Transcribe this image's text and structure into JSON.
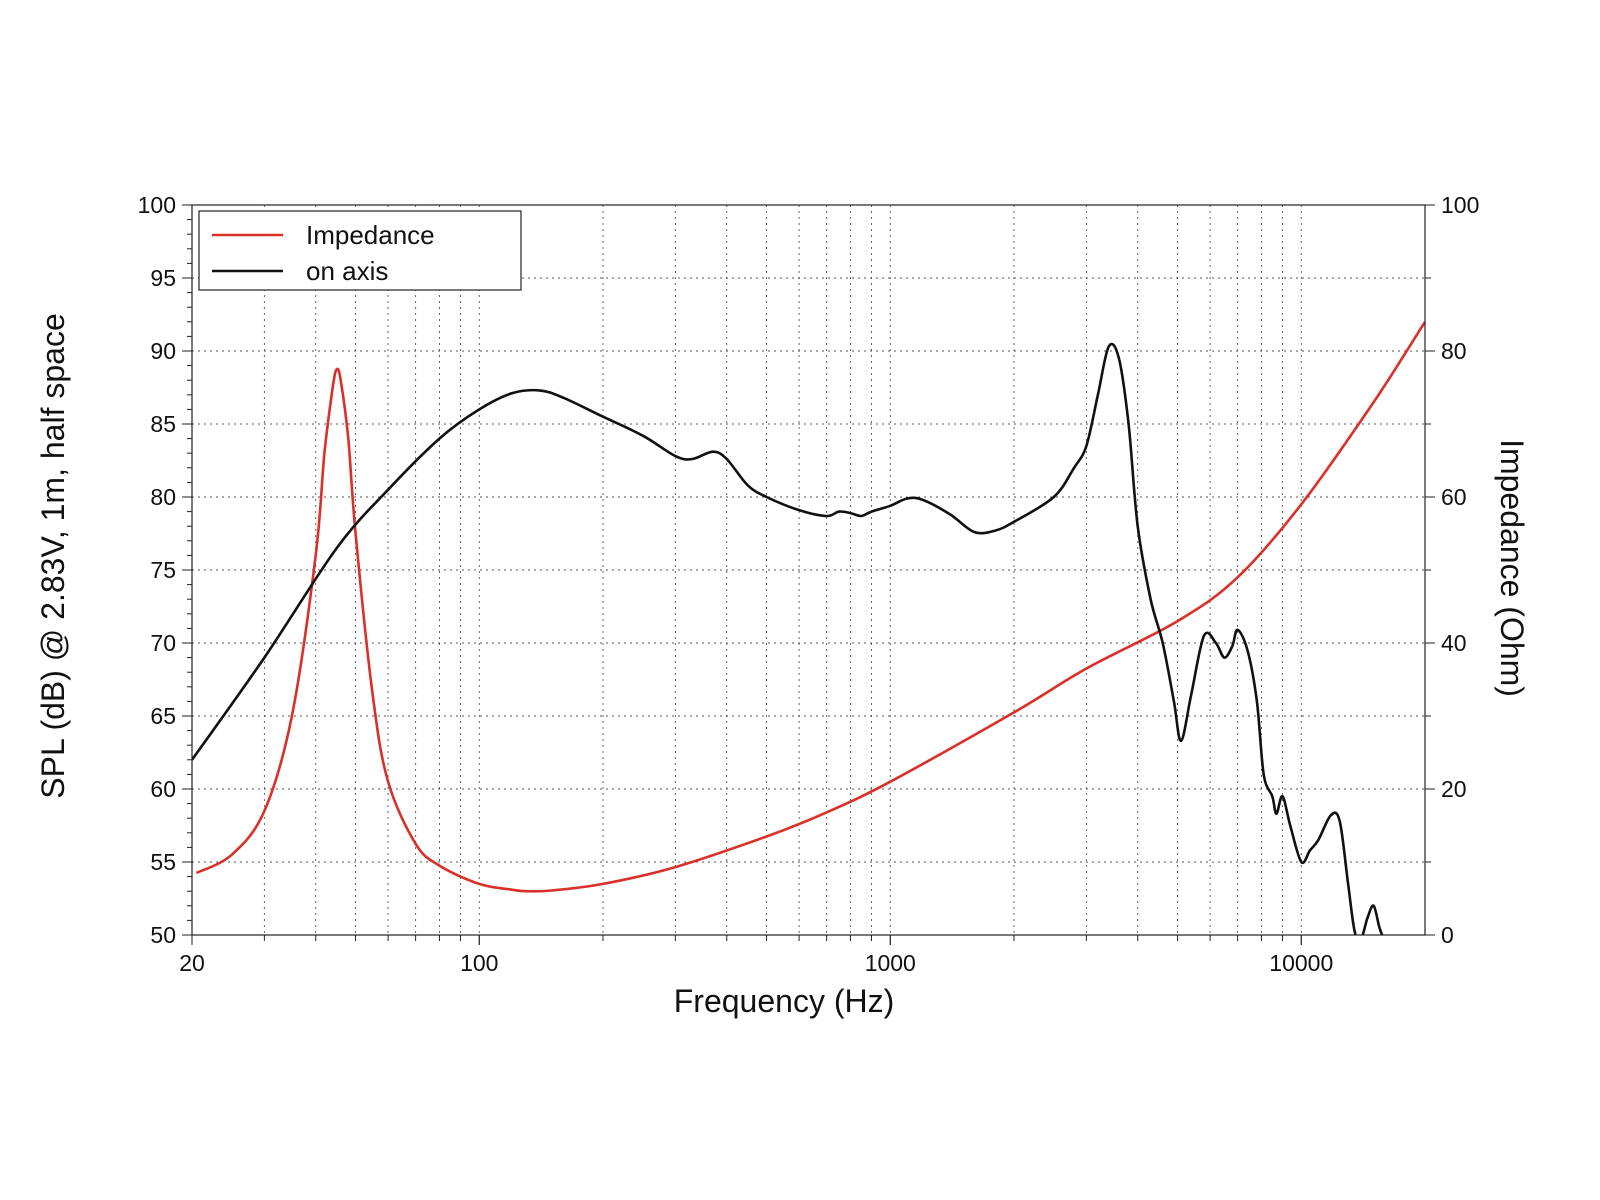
{
  "chart_data": {
    "type": "line",
    "title": "",
    "xlabel": "Frequency (Hz)",
    "ylabel": "SPL (dB) @ 2.83V, 1m, half space",
    "y2label": "Impedance (Ohm)",
    "x_scale": "log",
    "xlim": [
      20,
      20000
    ],
    "ylim": [
      50,
      100
    ],
    "y2lim": [
      0,
      100
    ],
    "grid": true,
    "legend_position": "top-left",
    "x_ticks": [
      20,
      100,
      1000,
      10000
    ],
    "x_tick_labels": [
      "20",
      "100",
      "1000",
      "10000"
    ],
    "y_ticks": [
      50,
      55,
      60,
      65,
      70,
      75,
      80,
      85,
      90,
      95,
      100
    ],
    "y_tick_labels": [
      "50",
      "55",
      "60",
      "65",
      "70",
      "75",
      "80",
      "85",
      "90",
      "95",
      "100"
    ],
    "y2_ticks": [
      0,
      20,
      40,
      60,
      80,
      100
    ],
    "y2_tick_labels": [
      "0",
      "20",
      "40",
      "60",
      "80",
      "100"
    ],
    "series": [
      {
        "name": "Impedance",
        "axis": "right",
        "color": "#d9302a",
        "points": [
          [
            20.5,
            8.5
          ],
          [
            25,
            11
          ],
          [
            30,
            17
          ],
          [
            35,
            30
          ],
          [
            40,
            52
          ],
          [
            42,
            66
          ],
          [
            44,
            75
          ],
          [
            45,
            77.5
          ],
          [
            46,
            76
          ],
          [
            48,
            68
          ],
          [
            50,
            55
          ],
          [
            55,
            33
          ],
          [
            60,
            21
          ],
          [
            70,
            12.5
          ],
          [
            80,
            9.5
          ],
          [
            100,
            7
          ],
          [
            120,
            6.2
          ],
          [
            130,
            6
          ],
          [
            150,
            6.1
          ],
          [
            200,
            7
          ],
          [
            300,
            9.3
          ],
          [
            500,
            13.5
          ],
          [
            700,
            16.8
          ],
          [
            1000,
            21
          ],
          [
            2000,
            30.5
          ],
          [
            3000,
            36.5
          ],
          [
            5000,
            43
          ],
          [
            7000,
            49
          ],
          [
            10000,
            59
          ],
          [
            15000,
            73
          ],
          [
            20000,
            84
          ]
        ]
      },
      {
        "name": "on axis",
        "axis": "left",
        "color": "#111111",
        "points": [
          [
            20,
            62
          ],
          [
            30,
            69
          ],
          [
            45,
            76.5
          ],
          [
            60,
            80.5
          ],
          [
            80,
            84
          ],
          [
            100,
            86
          ],
          [
            120,
            87.1
          ],
          [
            140,
            87.3
          ],
          [
            160,
            86.8
          ],
          [
            200,
            85.5
          ],
          [
            250,
            84.2
          ],
          [
            300,
            82.8
          ],
          [
            330,
            82.6
          ],
          [
            370,
            83.1
          ],
          [
            400,
            82.6
          ],
          [
            450,
            80.8
          ],
          [
            500,
            80
          ],
          [
            600,
            79.1
          ],
          [
            700,
            78.7
          ],
          [
            750,
            79
          ],
          [
            800,
            78.9
          ],
          [
            850,
            78.7
          ],
          [
            900,
            79
          ],
          [
            1000,
            79.4
          ],
          [
            1100,
            79.9
          ],
          [
            1200,
            79.8
          ],
          [
            1400,
            78.8
          ],
          [
            1600,
            77.6
          ],
          [
            1800,
            77.7
          ],
          [
            2000,
            78.3
          ],
          [
            2500,
            80
          ],
          [
            2800,
            82
          ],
          [
            3000,
            83.5
          ],
          [
            3200,
            87
          ],
          [
            3400,
            90.3
          ],
          [
            3600,
            89.5
          ],
          [
            3800,
            85
          ],
          [
            4000,
            78
          ],
          [
            4300,
            73
          ],
          [
            4600,
            70
          ],
          [
            4900,
            66
          ],
          [
            5100,
            63.3
          ],
          [
            5400,
            66.5
          ],
          [
            5800,
            70.5
          ],
          [
            6200,
            70
          ],
          [
            6500,
            69
          ],
          [
            6800,
            69.8
          ],
          [
            7000,
            70.9
          ],
          [
            7400,
            69.5
          ],
          [
            7800,
            66
          ],
          [
            8100,
            61
          ],
          [
            8500,
            59.5
          ],
          [
            8700,
            58.3
          ],
          [
            9000,
            59.5
          ],
          [
            9400,
            57.5
          ],
          [
            10000,
            55
          ],
          [
            10500,
            55.8
          ],
          [
            11000,
            56.5
          ],
          [
            11800,
            58.2
          ],
          [
            12400,
            57.8
          ],
          [
            13000,
            53.5
          ],
          [
            13500,
            50.2
          ],
          [
            14000,
            49.8
          ],
          [
            14500,
            51.2
          ],
          [
            15000,
            52
          ],
          [
            15500,
            50.5
          ],
          [
            16000,
            49.5
          ]
        ]
      }
    ]
  }
}
